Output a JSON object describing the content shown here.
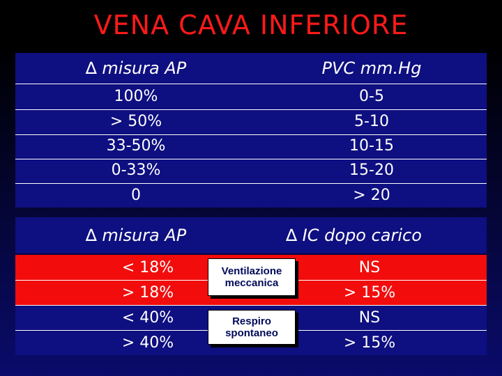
{
  "title": "VENA CAVA INFERIORE",
  "table1": {
    "header_left": "∆ misura AP",
    "header_right": "PVC mm.Hg",
    "rows": [
      {
        "left": "100%",
        "right": "0-5"
      },
      {
        "left": "> 50%",
        "right": "5-10"
      },
      {
        "left": "33-50%",
        "right": "10-15"
      },
      {
        "left": "0-33%",
        "right": "15-20"
      },
      {
        "left": "0",
        "right": "> 20"
      }
    ]
  },
  "table2": {
    "header_left": "∆ misura AP",
    "header_right": "∆ IC dopo carico",
    "rows": [
      {
        "left": "< 18%",
        "right": "NS"
      },
      {
        "left": "> 18%",
        "right": "> 15%"
      },
      {
        "left": "< 40%",
        "right": "NS"
      },
      {
        "left": "> 40%",
        "right": "> 15%"
      }
    ],
    "box_top": "Ventilazione meccanica",
    "box_bottom": "Respiro spontaneo"
  },
  "colors": {
    "title": "#ff1a1a",
    "blue": "#0e0f80",
    "red": "#f20c0c"
  }
}
